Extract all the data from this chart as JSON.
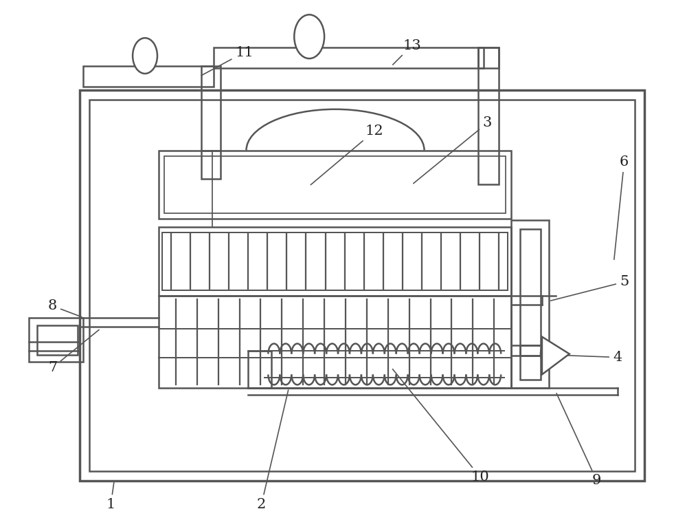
{
  "bg_color": "#ffffff",
  "lc": "#555555",
  "lw": 1.8,
  "tlw": 2.5,
  "label_fs": 15,
  "label_color": "#222222"
}
